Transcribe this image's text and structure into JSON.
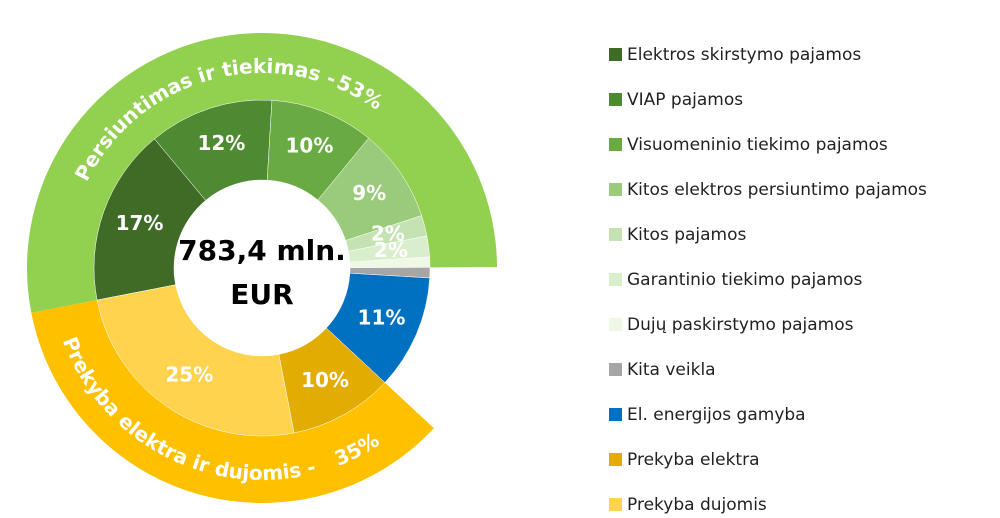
{
  "chart_data": {
    "type": "sunburst",
    "center_label": [
      "783,4 mln.",
      "EUR"
    ],
    "inner": {
      "categories": [
        "Elektros skirstymo pajamos",
        "VIAP pajamos",
        "Visuomeninio tiekimo pajamos",
        "Kitos elektros persiuntimo pajamos",
        "Kitos pajamos",
        "Garantinio tiekimo pajamos",
        "Dujų paskirstymo pajamos",
        "Kita veikla",
        "El. energijos gamyba",
        "Prekyba elektra",
        "Prekyba dujomis"
      ],
      "values": [
        17,
        12,
        10,
        9,
        2,
        2,
        1,
        1,
        11,
        10,
        25
      ],
      "value_labels": [
        "17%",
        "12%",
        "10%",
        "9%",
        "2%",
        "2%",
        null,
        null,
        "11%",
        "10%",
        "25%"
      ],
      "colors": [
        "#3f6b27",
        "#4e8a32",
        "#6aaa42",
        "#9acb7a",
        "#c5e3b2",
        "#d9efcc",
        "#eef8e4",
        "#a6a6a6",
        "#0070c0",
        "#e3ac00",
        "#ffd34d"
      ]
    },
    "outer": {
      "categories": [
        "Persiuntimas ir tiekimas -",
        "Prekyba elektra ir dujomis -"
      ],
      "values": [
        53,
        35
      ],
      "value_labels": [
        "53%",
        "35%"
      ],
      "colors": [
        "#92d050",
        "#ffc000"
      ]
    },
    "legend": true
  }
}
